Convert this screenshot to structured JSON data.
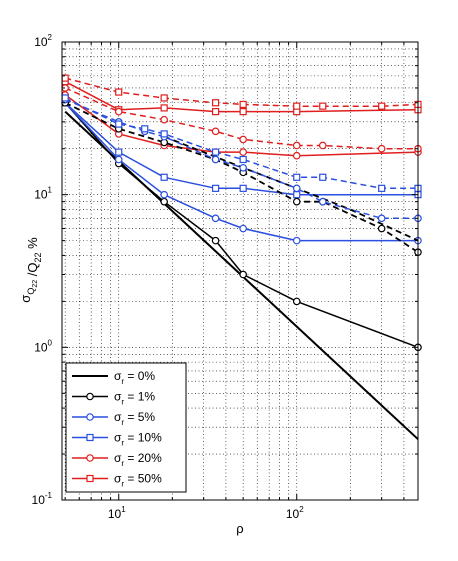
{
  "chart_data": {
    "type": "line",
    "x_scale": "log",
    "y_scale": "log",
    "xlim": [
      4.8,
      480
    ],
    "ylim": [
      0.1,
      100
    ],
    "grid": true,
    "xlabel": "ρ",
    "ylabel": "σ_Q22 / Q_22, %",
    "x_ticks": [
      {
        "base": "10",
        "exp": "1",
        "value": 10
      },
      {
        "base": "10",
        "exp": "2",
        "value": 100
      }
    ],
    "y_ticks": [
      {
        "base": "10",
        "exp": "-1",
        "value": 0.1
      },
      {
        "base": "10",
        "exp": "0",
        "value": 1
      },
      {
        "base": "10",
        "exp": "1",
        "value": 10
      },
      {
        "base": "10",
        "exp": "2",
        "value": 100
      }
    ],
    "legend_position": "bottom-left",
    "legend": [
      {
        "symbol": "σ",
        "sub": "r",
        "text": " = 0%",
        "color": "#000000",
        "marker": "none"
      },
      {
        "symbol": "σ",
        "sub": "r",
        "text": " = 1%",
        "color": "#000000",
        "marker": "circle"
      },
      {
        "symbol": "σ",
        "sub": "r",
        "text": " = 5%",
        "color": "#2a4fe0",
        "marker": "circle"
      },
      {
        "symbol": "σ",
        "sub": "r",
        "text": " = 10%",
        "color": "#2a4fe0",
        "marker": "square"
      },
      {
        "symbol": "σ",
        "sub": "r",
        "text": " = 20%",
        "color": "#e01e1e",
        "marker": "circle"
      },
      {
        "symbol": "σ",
        "sub": "r",
        "text": " = 50%",
        "color": "#e01e1e",
        "marker": "square"
      }
    ],
    "series": [
      {
        "id": "s0",
        "color": "#000000",
        "marker": "none",
        "dash": false,
        "width": 2,
        "x": [
          5,
          480
        ],
        "y": [
          35,
          0.25
        ]
      },
      {
        "id": "s1",
        "color": "#000000",
        "marker": "circle",
        "dash": false,
        "width": 1.5,
        "x": [
          5,
          10,
          18,
          35,
          50,
          100,
          480
        ],
        "y": [
          40,
          16,
          9,
          5,
          3,
          2,
          1
        ]
      },
      {
        "id": "s2",
        "color": "#2a4fe0",
        "marker": "circle",
        "dash": false,
        "width": 1.5,
        "x": [
          5,
          10,
          18,
          35,
          50,
          100,
          480
        ],
        "y": [
          40,
          17,
          10,
          7,
          6,
          5,
          5
        ]
      },
      {
        "id": "s3",
        "color": "#2a4fe0",
        "marker": "square",
        "dash": false,
        "width": 1.5,
        "x": [
          5,
          10,
          18,
          35,
          50,
          100,
          480
        ],
        "y": [
          40,
          19,
          13,
          11,
          11,
          10,
          10
        ]
      },
      {
        "id": "s4",
        "color": "#e01e1e",
        "marker": "circle",
        "dash": false,
        "width": 1.5,
        "x": [
          5,
          10,
          18,
          35,
          50,
          100,
          480
        ],
        "y": [
          45,
          25,
          21,
          19,
          19,
          18,
          19
        ]
      },
      {
        "id": "s5",
        "color": "#e01e1e",
        "marker": "square",
        "dash": false,
        "width": 1.5,
        "x": [
          5,
          10,
          18,
          35,
          50,
          100,
          480
        ],
        "y": [
          55,
          36,
          37,
          35,
          35,
          35,
          36
        ]
      },
      {
        "id": "d1",
        "color": "#000000",
        "marker": "circle",
        "dash": true,
        "width": 1.8,
        "x": [
          5,
          10,
          18,
          35,
          50,
          100,
          140,
          300,
          480
        ],
        "y": [
          40,
          27,
          22,
          17,
          14,
          9,
          9,
          6,
          4.2
        ]
      },
      {
        "id": "d1b",
        "color": "#000000",
        "marker": "none",
        "dash": true,
        "width": 1.8,
        "x": [
          18,
          50,
          100,
          200,
          480
        ],
        "y": [
          24,
          15,
          11,
          8,
          5
        ]
      },
      {
        "id": "d2",
        "color": "#2a4fe0",
        "marker": "circle",
        "dash": true,
        "width": 1.5,
        "x": [
          5,
          10,
          14,
          18,
          35,
          50,
          100,
          140,
          300,
          480
        ],
        "y": [
          42,
          30,
          26,
          24,
          17,
          15,
          11,
          9,
          7,
          7
        ]
      },
      {
        "id": "d3",
        "color": "#2a4fe0",
        "marker": "square",
        "dash": true,
        "width": 1.5,
        "x": [
          5,
          10,
          14,
          18,
          35,
          50,
          100,
          140,
          300,
          480
        ],
        "y": [
          43,
          29,
          27,
          25,
          19,
          17,
          13,
          13,
          11,
          11
        ]
      },
      {
        "id": "d4",
        "color": "#e01e1e",
        "marker": "circle",
        "dash": true,
        "width": 1.5,
        "x": [
          5,
          10,
          18,
          35,
          50,
          100,
          140,
          300,
          480
        ],
        "y": [
          50,
          35,
          31,
          26,
          23,
          21,
          21,
          20,
          20
        ]
      },
      {
        "id": "d5",
        "color": "#e01e1e",
        "marker": "square",
        "dash": true,
        "width": 1.5,
        "x": [
          5,
          10,
          18,
          35,
          50,
          100,
          140,
          300,
          480
        ],
        "y": [
          58,
          47,
          43,
          40,
          39,
          38,
          38,
          38,
          39
        ]
      }
    ]
  }
}
